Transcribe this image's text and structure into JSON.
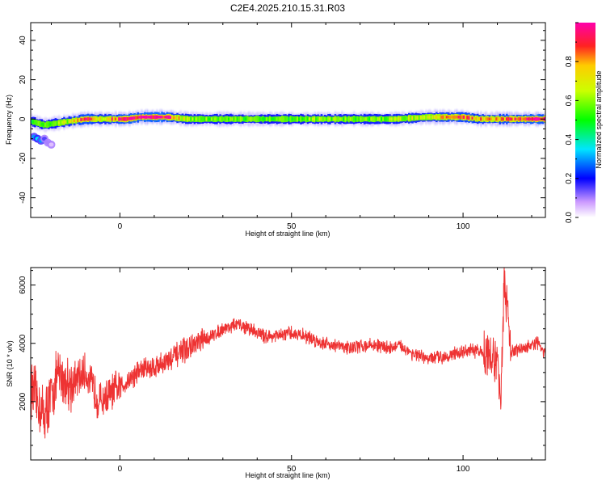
{
  "title": "C2E4.2025.210.15.31.R03",
  "chart_data": [
    {
      "type": "heatmap",
      "xlabel": "Height of straight line (km)",
      "ylabel": "Frequency (Hz)",
      "xlim": [
        -26,
        124
      ],
      "ylim": [
        -50,
        49
      ],
      "x_ticks": [
        0,
        50,
        100
      ],
      "y_ticks": [
        -40,
        -20,
        0,
        20,
        40
      ],
      "colorbar": {
        "label": "Normalized spectral amplitude",
        "range": [
          0,
          1
        ],
        "ticks": [
          "0.0",
          "0.2",
          "0.4",
          "0.6",
          "0.8"
        ],
        "tick_values": [
          0,
          0.2,
          0.4,
          0.6,
          0.8
        ]
      },
      "ridge": {
        "x": [
          -26,
          -22,
          -18,
          -14,
          -10,
          -6,
          -2,
          2,
          6,
          10,
          14,
          20,
          30,
          40,
          50,
          60,
          70,
          80,
          90,
          100,
          105,
          110,
          115,
          120,
          124
        ],
        "frequency": [
          -1,
          -3,
          -2,
          -1,
          0,
          0,
          0,
          0,
          1,
          1,
          1,
          0,
          0,
          0,
          0,
          0,
          0,
          0,
          1,
          1,
          0,
          0,
          0,
          0,
          0
        ],
        "amplitude": [
          0.5,
          0.55,
          0.6,
          0.65,
          0.95,
          0.7,
          0.85,
          0.9,
          0.95,
          1.0,
          0.95,
          0.6,
          0.55,
          0.55,
          0.55,
          0.6,
          0.55,
          0.6,
          0.7,
          0.85,
          0.8,
          0.75,
          0.9,
          0.95,
          0.9
        ]
      },
      "side_blob": {
        "x": [
          -25,
          -24,
          -23,
          -22,
          -21,
          -20
        ],
        "frequency": [
          -9,
          -10,
          -11,
          -10,
          -12,
          -13
        ],
        "amplitude": [
          0.3,
          0.35,
          0.3,
          0.15,
          0.1,
          0.05
        ]
      }
    },
    {
      "type": "line",
      "xlabel": "Height of straight line (km)",
      "ylabel": "SNR (10 * v/v)",
      "xlim": [
        -26,
        124
      ],
      "ylim": [
        0,
        6600
      ],
      "x_ticks": [
        0,
        50,
        100
      ],
      "y_ticks": [
        2000,
        4000,
        6000
      ],
      "color": "#ee3333",
      "series": [
        {
          "x": [
            -26,
            -22,
            -18,
            -14,
            -10,
            -6,
            -2,
            2,
            6,
            10,
            14,
            18,
            22,
            26,
            30,
            34,
            38,
            42,
            46,
            50,
            54,
            58,
            62,
            66,
            70,
            74,
            78,
            82,
            86,
            90,
            94,
            98,
            102,
            106,
            108,
            110,
            111,
            112,
            114,
            118,
            122,
            124
          ],
          "values": [
            2500,
            1500,
            2900,
            2600,
            3000,
            2000,
            2300,
            2700,
            3100,
            3200,
            3400,
            3700,
            3950,
            4200,
            4500,
            4650,
            4500,
            4250,
            4250,
            4350,
            4250,
            4050,
            3950,
            3850,
            3900,
            3950,
            3850,
            3900,
            3600,
            3450,
            3550,
            3650,
            3750,
            3700,
            3600,
            3200,
            2300,
            6100,
            3700,
            3850,
            4000,
            3600
          ]
        }
      ]
    }
  ]
}
